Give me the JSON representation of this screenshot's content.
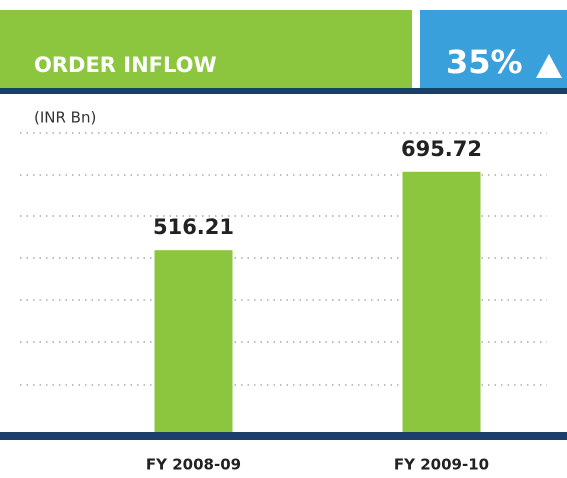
{
  "chart_data": {
    "type": "bar",
    "title": "ORDER INFLOW",
    "annotation": "35%",
    "unit_label": "(INR Bn)",
    "categories": [
      "FY 2008-09",
      "FY 2009-10"
    ],
    "values": [
      516.21,
      695.72
    ],
    "color": "#8cc63f",
    "ylim": [
      100,
      860
    ]
  }
}
